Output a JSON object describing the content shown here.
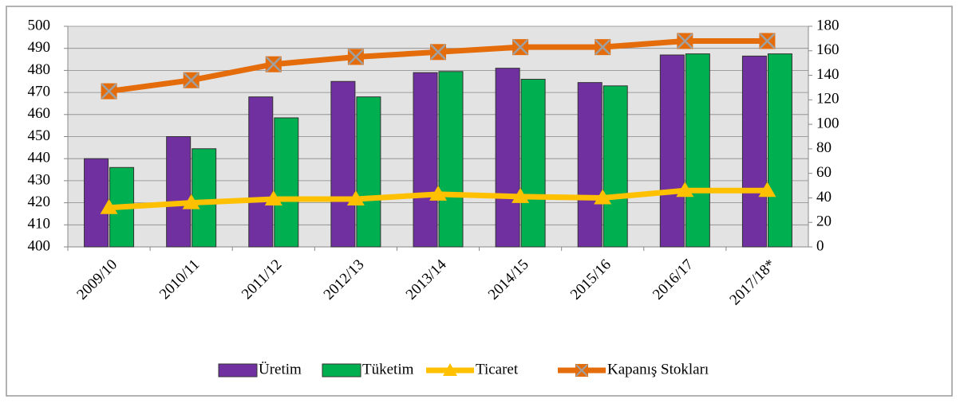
{
  "chart_data": {
    "type": "combo",
    "categories": [
      "2009/10",
      "2010/11",
      "2011/12",
      "2012/13",
      "2013/14",
      "2014/15",
      "2015/16",
      "2016/17",
      "2017/18*"
    ],
    "series": [
      {
        "name": "Üretim",
        "type": "bar",
        "color": "#7030a0",
        "values": [
          440,
          450,
          468,
          475,
          479,
          481,
          474.5,
          487,
          486.5
        ]
      },
      {
        "name": "Tüketim",
        "type": "bar",
        "color": "#00b050",
        "values": [
          436,
          444.5,
          458.5,
          468,
          479.5,
          476,
          473,
          487.5,
          487.5
        ]
      },
      {
        "name": "Ticaret",
        "type": "line",
        "axis": "y2",
        "marker": "triangle",
        "color": "#ffc000",
        "values": [
          32,
          36,
          39,
          39,
          43,
          41,
          40,
          46,
          46
        ]
      },
      {
        "name": "Kapanış Stokları",
        "type": "line",
        "axis": "y2",
        "marker": "x-square",
        "color": "#e46c0a",
        "values": [
          127,
          136,
          149,
          155,
          159,
          163,
          163,
          168,
          168
        ]
      }
    ],
    "ylim": [
      400,
      500
    ],
    "yticks": [
      400,
      410,
      420,
      430,
      440,
      450,
      460,
      470,
      480,
      490,
      500
    ],
    "y2lim": [
      0,
      180
    ],
    "y2ticks": [
      0,
      20,
      40,
      60,
      80,
      100,
      120,
      140,
      160,
      180
    ],
    "grid": true,
    "legend": "bottom"
  }
}
